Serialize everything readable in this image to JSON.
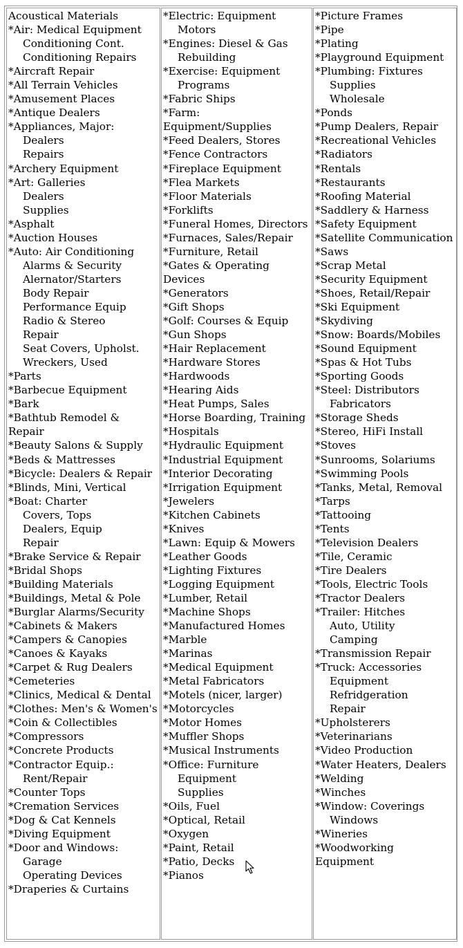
{
  "columns": [
    [
      {
        "label": "Acoustical Materials"
      },
      {
        "label": "*Air: Medical Equipment",
        "subs": [
          "Conditioning Cont.",
          "Conditioning Repairs"
        ]
      },
      {
        "label": "*Aircraft Repair"
      },
      {
        "label": "*All Terrain Vehicles"
      },
      {
        "label": "*Amusement Places"
      },
      {
        "label": "*Antique Dealers"
      },
      {
        "label": "*Appliances, Major:",
        "subs": [
          "Dealers",
          "Repairs"
        ]
      },
      {
        "label": "*Archery Equipment"
      },
      {
        "label": "*Art: Galleries",
        "subs": [
          "Dealers",
          "Supplies"
        ]
      },
      {
        "label": "*Asphalt"
      },
      {
        "label": "*Auction Houses"
      },
      {
        "label": "*Auto: Air Conditioning",
        "subs": [
          "Alarms & Security",
          "Alernator/Starters",
          "Body Repair",
          "Performance Equip",
          "Radio & Stereo",
          "Repair",
          "Seat Covers, Upholst.",
          "Wreckers, Used"
        ]
      },
      {
        "label": "*Parts"
      },
      {
        "label": "*Barbecue Equipment"
      },
      {
        "label": "*Bark"
      },
      {
        "label": "*Bathtub Remodel & Repair"
      },
      {
        "label": "*Beauty Salons & Supply"
      },
      {
        "label": "*Beds & Mattresses"
      },
      {
        "label": "*Bicycle: Dealers & Repair"
      },
      {
        "label": "*Blinds, Mini, Vertical"
      },
      {
        "label": "*Boat: Charter",
        "subs": [
          "Covers, Tops",
          "Dealers, Equip",
          "Repair"
        ]
      },
      {
        "label": "*Brake Service & Repair"
      },
      {
        "label": "*Bridal Shops"
      },
      {
        "label": "*Building Materials"
      },
      {
        "label": "*Buildings, Metal & Pole"
      },
      {
        "label": "*Burglar Alarms/Security"
      },
      {
        "label": "*Cabinets & Makers"
      },
      {
        "label": "*Campers & Canopies"
      },
      {
        "label": "*Canoes & Kayaks"
      },
      {
        "label": "*Carpet & Rug Dealers"
      },
      {
        "label": "*Cemeteries"
      },
      {
        "label": "*Clinics, Medical & Dental"
      },
      {
        "label": "*Clothes: Men's & Women's"
      },
      {
        "label": "*Coin & Collectibles"
      },
      {
        "label": "*Compressors"
      },
      {
        "label": "*Concrete Products"
      },
      {
        "label": "*Contractor Equip.:",
        "subs": [
          "Rent/Repair"
        ]
      },
      {
        "label": "*Counter Tops"
      },
      {
        "label": "*Cremation Services"
      },
      {
        "label": "*Dog & Cat Kennels"
      },
      {
        "label": "*Diving Equipment"
      },
      {
        "label": "*Door and Windows:",
        "subs": [
          "Garage",
          "Operating Devices"
        ]
      },
      {
        "label": "*Draperies & Curtains"
      }
    ],
    [
      {
        "label": "*Electric: Equipment",
        "subs": [
          "Motors"
        ]
      },
      {
        "label": "*Engines: Diesel & Gas",
        "subs": [
          "Rebuilding"
        ]
      },
      {
        "label": "*Exercise: Equipment",
        "subs": [
          "Programs"
        ]
      },
      {
        "label": "*Fabric Ships"
      },
      {
        "label": "*Farm: Equipment/Supplies"
      },
      {
        "label": "*Feed Dealers, Stores"
      },
      {
        "label": "*Fence Contractors"
      },
      {
        "label": "*Fireplace Equipment"
      },
      {
        "label": "*Flea Markets"
      },
      {
        "label": "*Floor Materials"
      },
      {
        "label": "*Forklifts"
      },
      {
        "label": "*Funeral Homes, Directors"
      },
      {
        "label": "*Furnaces, Sales/Repair"
      },
      {
        "label": "*Furniture, Retail"
      },
      {
        "label": "*Gates & Operating Devices"
      },
      {
        "label": "*Generators"
      },
      {
        "label": "*Gift Shops"
      },
      {
        "label": "*Golf: Courses & Equip"
      },
      {
        "label": "*Gun Shops"
      },
      {
        "label": "*Hair Replacement"
      },
      {
        "label": "*Hardware Stores"
      },
      {
        "label": "*Hardwoods"
      },
      {
        "label": "*Hearing Aids"
      },
      {
        "label": "*Heat Pumps, Sales"
      },
      {
        "label": "*Horse Boarding, Training"
      },
      {
        "label": "*Hospitals"
      },
      {
        "label": "*Hydraulic Equipment"
      },
      {
        "label": "*Industrial Equipment"
      },
      {
        "label": "*Interior Decorating"
      },
      {
        "label": "*Irrigation Equipment"
      },
      {
        "label": "*Jewelers"
      },
      {
        "label": "*Kitchen Cabinets"
      },
      {
        "label": "*Knives"
      },
      {
        "label": "*Lawn: Equip & Mowers"
      },
      {
        "label": "*Leather Goods"
      },
      {
        "label": "*Lighting Fixtures"
      },
      {
        "label": "*Logging Equipment"
      },
      {
        "label": "*Lumber, Retail"
      },
      {
        "label": "*Machine Shops"
      },
      {
        "label": "*Manufactured Homes"
      },
      {
        "label": "*Marble"
      },
      {
        "label": "*Marinas"
      },
      {
        "label": "*Medical Equipment"
      },
      {
        "label": "*Metal Fabricators"
      },
      {
        "label": "*Motels (nicer, larger)"
      },
      {
        "label": "*Motorcycles"
      },
      {
        "label": "*Motor Homes"
      },
      {
        "label": "*Muffler Shops"
      },
      {
        "label": "*Musical Instruments"
      },
      {
        "label": "*Office: Furniture",
        "subs": [
          "Equipment",
          "Supplies"
        ]
      },
      {
        "label": "*Oils, Fuel"
      },
      {
        "label": "*Optical, Retail"
      },
      {
        "label": "*Oxygen"
      },
      {
        "label": "*Paint, Retail"
      },
      {
        "label": "*Patio, Decks"
      },
      {
        "label": "*Pianos"
      }
    ],
    [
      {
        "label": "*Picture Frames"
      },
      {
        "label": "*Pipe"
      },
      {
        "label": "*Plating"
      },
      {
        "label": "*Playground Equipment"
      },
      {
        "label": "*Plumbing: Fixtures",
        "subs": [
          "Supplies",
          "Wholesale"
        ]
      },
      {
        "label": "*Ponds"
      },
      {
        "label": "*Pump Dealers, Repair"
      },
      {
        "label": "*Recreational Vehicles"
      },
      {
        "label": "*Radiators"
      },
      {
        "label": "*Rentals"
      },
      {
        "label": "*Restaurants"
      },
      {
        "label": "*Roofing Material"
      },
      {
        "label": "*Saddlery & Harness"
      },
      {
        "label": "*Safety Equipment"
      },
      {
        "label": "*Satellite Communication"
      },
      {
        "label": "*Saws"
      },
      {
        "label": "*Scrap Metal"
      },
      {
        "label": "*Security Equipment"
      },
      {
        "label": "*Shoes, Retail/Repair"
      },
      {
        "label": "*Ski Equipment"
      },
      {
        "label": "*Skydiving"
      },
      {
        "label": "*Snow: Boards/Mobiles"
      },
      {
        "label": "*Sound Equipment"
      },
      {
        "label": "*Spas & Hot Tubs"
      },
      {
        "label": "*Sporting Goods"
      },
      {
        "label": "*Steel: Distributors",
        "subs": [
          "Fabricators"
        ]
      },
      {
        "label": "*Storage Sheds"
      },
      {
        "label": "*Stereo, HiFi Install"
      },
      {
        "label": "*Stoves"
      },
      {
        "label": "*Sunrooms, Solariums"
      },
      {
        "label": "*Swimming Pools"
      },
      {
        "label": "*Tanks, Metal, Removal"
      },
      {
        "label": "*Tarps"
      },
      {
        "label": "*Tattooing"
      },
      {
        "label": "*Tents"
      },
      {
        "label": "*Television Dealers"
      },
      {
        "label": "*Tile, Ceramic"
      },
      {
        "label": "*Tire Dealers"
      },
      {
        "label": "*Tools, Electric Tools"
      },
      {
        "label": "*Tractor Dealers"
      },
      {
        "label": "*Trailer: Hitches",
        "subs": [
          "Auto, Utility",
          "Camping"
        ]
      },
      {
        "label": "*Transmission Repair"
      },
      {
        "label": "*Truck: Accessories",
        "subs": [
          "Equipment",
          "Refridgeration",
          "Repair"
        ]
      },
      {
        "label": "*Upholsterers"
      },
      {
        "label": "*Veterinarians"
      },
      {
        "label": "*Video Production"
      },
      {
        "label": "*Water Heaters, Dealers"
      },
      {
        "label": "*Welding"
      },
      {
        "label": "*Winches"
      },
      {
        "label": "*Window: Coverings",
        "subs": [
          "Windows"
        ]
      },
      {
        "label": "*Wineries"
      },
      {
        "label": "*Woodworking Equipment"
      }
    ]
  ],
  "icons": {
    "cursor": "mouse-pointer-icon"
  }
}
